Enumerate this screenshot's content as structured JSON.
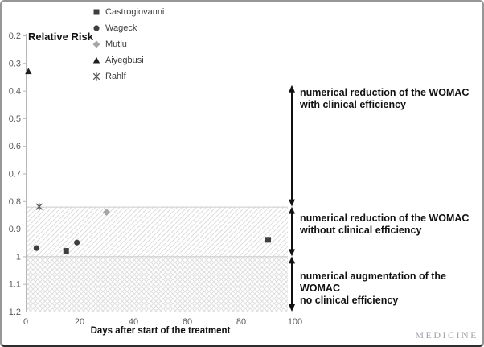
{
  "frame": {
    "watermark": "MEDICINE"
  },
  "chart_data": {
    "type": "scatter",
    "title": "",
    "ylabel": "Relative Risk",
    "xlabel": "Days after start of the treatment",
    "y_inverted": true,
    "ylim": [
      0.2,
      1.2
    ],
    "xlim": [
      0,
      100
    ],
    "x_ticks": [
      0,
      20,
      40,
      60,
      80,
      100
    ],
    "y_ticks": [
      "0.2",
      "0.3",
      "0.4",
      "0.5",
      "0.6",
      "0.7",
      "0.8",
      "0.9",
      "1",
      "1.1",
      "1.2"
    ],
    "grid": "off",
    "legend_position": "top-left-column",
    "series": [
      {
        "name": "Castrogiovanni",
        "marker": "square",
        "color": "#3f3f3f",
        "points": [
          {
            "x": 15,
            "y": 0.98
          },
          {
            "x": 90,
            "y": 0.94
          }
        ]
      },
      {
        "name": "Wageck",
        "marker": "circle",
        "color": "#3f3f3f",
        "points": [
          {
            "x": 4,
            "y": 0.97
          },
          {
            "x": 19,
            "y": 0.95
          }
        ]
      },
      {
        "name": "Mutlu",
        "marker": "diamond",
        "color": "#a6a6a6",
        "points": [
          {
            "x": 30,
            "y": 0.84
          }
        ]
      },
      {
        "name": "Aiyegbusi",
        "marker": "triangle",
        "color": "#1f1f1f",
        "points": [
          {
            "x": 1,
            "y": 0.33
          }
        ]
      },
      {
        "name": "Rahlf",
        "marker": "xstar",
        "color": "#595959",
        "points": [
          {
            "x": 5,
            "y": 0.82
          }
        ]
      }
    ],
    "bands": [
      {
        "from": 0.82,
        "to": 1.0,
        "pattern": "diagonal"
      },
      {
        "from": 1.0,
        "to": 1.2,
        "pattern": "cross"
      }
    ],
    "annotations": [
      {
        "lines": [
          "numerical reduction of the WOMAC",
          "with clinical efficiency"
        ],
        "arrow_from": 0.38,
        "arrow_to": 0.82
      },
      {
        "lines": [
          "numerical reduction of the WOMAC",
          "without clinical efficiency"
        ],
        "arrow_from": 0.82,
        "arrow_to": 1.0
      },
      {
        "lines": [
          "numerical augmentation of the WOMAC",
          "no clinical efficiency"
        ],
        "arrow_from": 1.0,
        "arrow_to": 1.2
      }
    ]
  }
}
